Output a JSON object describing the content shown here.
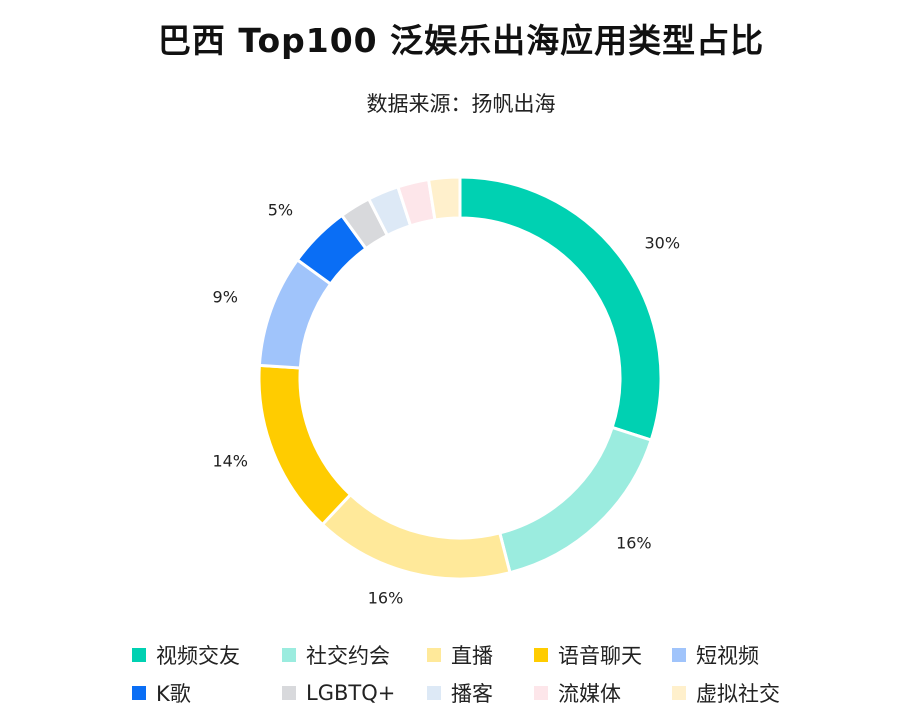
{
  "header": {
    "title": "巴西 Top100 泛娱乐出海应用类型占比",
    "subtitle": "数据来源：扬帆出海"
  },
  "chart_data": {
    "type": "pie",
    "variant": "donut",
    "title": "巴西 Top100 泛娱乐出海应用类型占比",
    "subtitle": "数据来源：扬帆出海",
    "categories": [
      "视频交友",
      "社交约会",
      "直播",
      "语音聊天",
      "短视频",
      "K歌",
      "LGBTQ+",
      "播客",
      "流媒体",
      "虚拟社交"
    ],
    "values": [
      30,
      16,
      16,
      14,
      9,
      5,
      2.5,
      2.5,
      2.5,
      2.5
    ],
    "labels": [
      "30%",
      "16%",
      "16%",
      "14%",
      "9%",
      "5%",
      "",
      "",
      "",
      ""
    ],
    "colors": [
      "#00D1B2",
      "#9BECDF",
      "#FFE99A",
      "#FFCC00",
      "#A0C4FB",
      "#0A6EF5",
      "#D8D9DC",
      "#DDE9F6",
      "#FDE6EA",
      "#FFF0CC"
    ],
    "legend_position": "bottom",
    "start_angle": "top, clockwise"
  },
  "legend": {
    "rows": [
      [
        {
          "label": "视频交友",
          "color": "#00D1B2"
        },
        {
          "label": "社交约会",
          "color": "#9BECDF"
        },
        {
          "label": "直播",
          "color": "#FFE99A"
        },
        {
          "label": "语音聊天",
          "color": "#FFCC00"
        },
        {
          "label": "短视频",
          "color": "#A0C4FB"
        }
      ],
      [
        {
          "label": "K歌",
          "color": "#0A6EF5"
        },
        {
          "label": "LGBTQ+",
          "color": "#D8D9DC"
        },
        {
          "label": "播客",
          "color": "#DDE9F6"
        },
        {
          "label": "流媒体",
          "color": "#FDE6EA"
        },
        {
          "label": "虚拟社交",
          "color": "#FFF0CC"
        }
      ]
    ]
  }
}
